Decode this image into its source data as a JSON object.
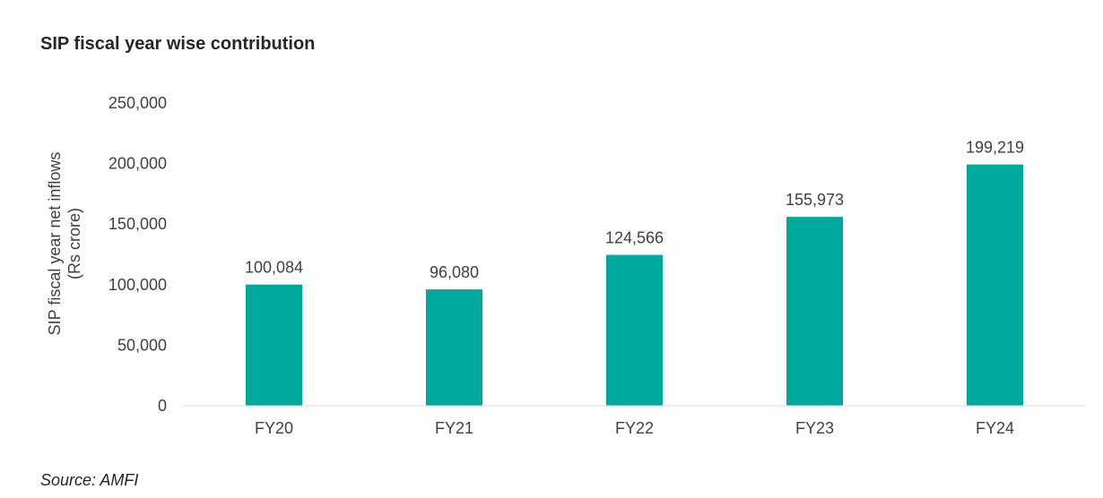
{
  "title": "SIP fiscal year wise contribution",
  "source": "Source: AMFI",
  "chart_data": {
    "type": "bar",
    "title": "SIP fiscal year wise contribution",
    "ylabel_lines": [
      "SIP fiscal year net inflows",
      "(Rs crore)"
    ],
    "xlabel": "",
    "categories": [
      "FY20",
      "FY21",
      "FY22",
      "FY23",
      "FY24"
    ],
    "values": [
      100084,
      96080,
      124566,
      155973,
      199219
    ],
    "data_labels": [
      "100,084",
      "96,080",
      "124,566",
      "155,973",
      "199,219"
    ],
    "yticks": [
      0,
      50000,
      100000,
      150000,
      200000,
      250000
    ],
    "ytick_labels": [
      "0",
      "50,000",
      "100,000",
      "150,000",
      "200,000",
      "250,000"
    ],
    "ylim": [
      0,
      250000
    ],
    "grid": false,
    "legend": "none",
    "bar_color": "#00A99D"
  }
}
